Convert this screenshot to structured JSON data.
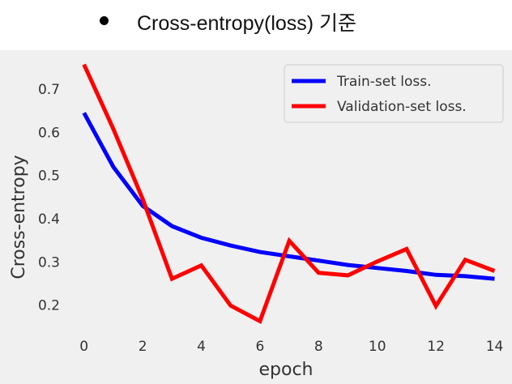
{
  "header": {
    "title": "Cross-entropy(loss) 기준"
  },
  "chart_data": {
    "type": "line",
    "xlabel": "epoch",
    "ylabel": "Cross-entropy",
    "xlim": [
      -0.6,
      14.4
    ],
    "ylim": [
      0.13,
      0.79
    ],
    "xticks": [
      0,
      2,
      4,
      6,
      8,
      10,
      12,
      14
    ],
    "yticks": [
      0.2,
      0.3,
      0.4,
      0.5,
      0.6,
      0.7
    ],
    "grid": false,
    "legend_position": "top-right",
    "x": [
      0,
      1,
      2,
      3,
      4,
      5,
      6,
      7,
      8,
      9,
      10,
      11,
      12,
      13,
      14
    ],
    "series": [
      {
        "name": "Train-set loss.",
        "color": "#0000ff",
        "values": [
          0.645,
          0.52,
          0.43,
          0.383,
          0.356,
          0.338,
          0.323,
          0.313,
          0.303,
          0.293,
          0.286,
          0.279,
          0.27,
          0.267,
          0.261
        ]
      },
      {
        "name": "Validation-set loss.",
        "color": "#ff0000",
        "values": [
          0.757,
          0.608,
          0.446,
          0.261,
          0.292,
          0.199,
          0.163,
          0.349,
          0.275,
          0.269,
          0.301,
          0.33,
          0.198,
          0.305,
          0.279
        ]
      }
    ]
  }
}
